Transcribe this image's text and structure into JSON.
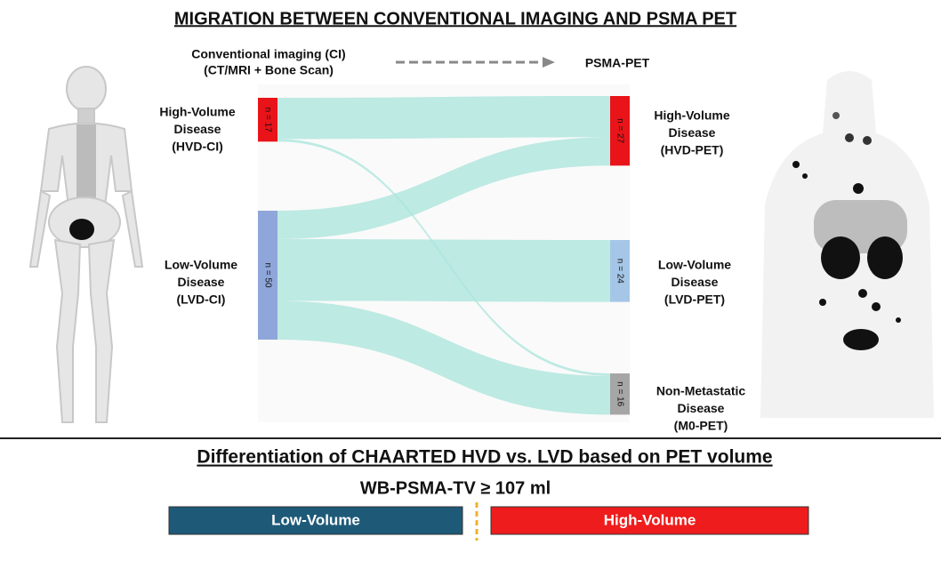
{
  "title": "MIGRATION BETWEEN CONVENTIONAL IMAGING AND PSMA PET",
  "header": {
    "source_label": [
      "Conventional imaging (CI)",
      "(CT/MRI + Bone Scan)"
    ],
    "target_label": "PSMA-PET"
  },
  "sankey": {
    "source_nodes": [
      {
        "label": [
          "High-Volume",
          "Disease",
          "(HVD-CI)"
        ],
        "value": 17,
        "value_label": "n = 17",
        "color": "#e8141a"
      },
      {
        "label": [
          "Low-Volume",
          "Disease",
          "(LVD-CI)"
        ],
        "value": 50,
        "value_label": "n = 50",
        "color": "#8ea6d9"
      }
    ],
    "target_nodes": [
      {
        "label": [
          "High-Volume",
          "Disease",
          "(HVD-PET)"
        ],
        "value": 27,
        "value_label": "n = 27",
        "color": "#e8141a"
      },
      {
        "label": [
          "Low-Volume",
          "Disease",
          "(LVD-PET)"
        ],
        "value": 24,
        "value_label": "n = 24",
        "color": "#a5c6e6"
      },
      {
        "label": [
          "Non-Metastatic",
          "Disease",
          "(M0-PET)"
        ],
        "value": 16,
        "value_label": "n = 16",
        "color": "#a6a6a6"
      }
    ],
    "links": [
      {
        "source": 0,
        "target": 0,
        "value": 16
      },
      {
        "source": 0,
        "target": 2,
        "value": 1
      },
      {
        "source": 1,
        "target": 0,
        "value": 11
      },
      {
        "source": 1,
        "target": 1,
        "value": 24
      },
      {
        "source": 1,
        "target": 2,
        "value": 15
      }
    ],
    "link_color": "#a8e4db"
  },
  "footer": {
    "title": "Differentiation of CHAARTED HVD vs. LVD based on PET volume",
    "threshold": "WB-PSMA-TV ≥ 107 ml",
    "categories": [
      {
        "label": "Low-Volume",
        "color": "#1e5a78"
      },
      {
        "label": "High-Volume",
        "color": "#ee1c1c"
      }
    ]
  }
}
